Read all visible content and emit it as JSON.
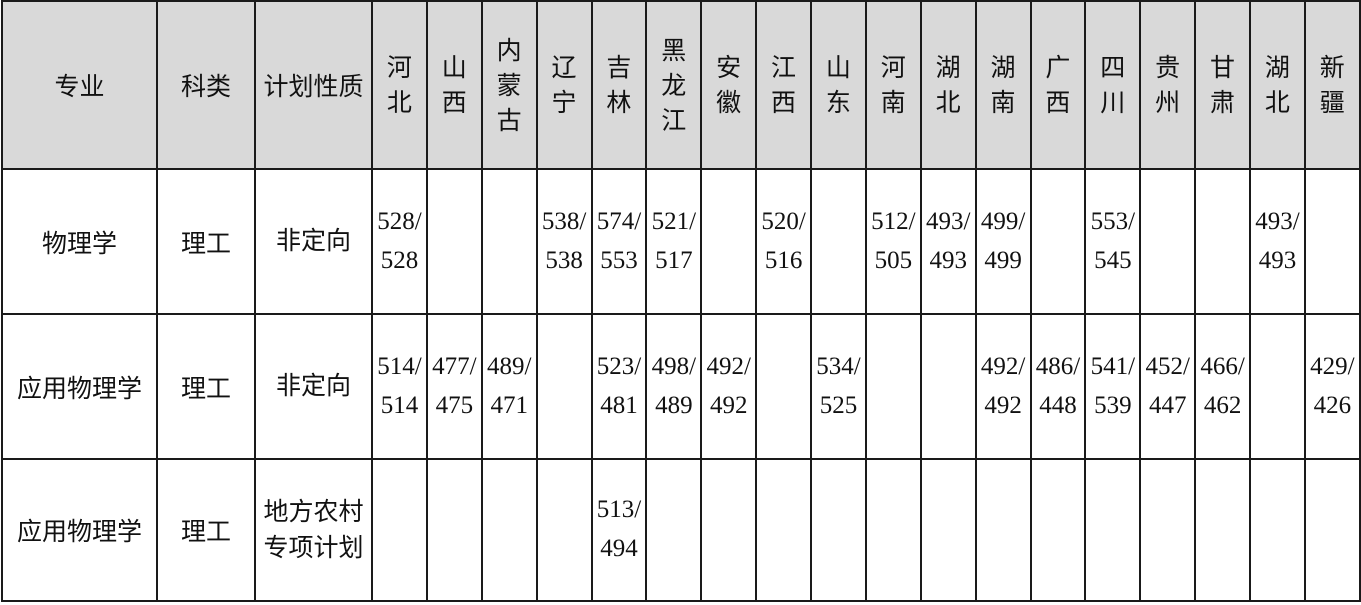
{
  "table": {
    "fixed_headers": [
      "专业",
      "科类",
      "计划性质"
    ],
    "provinces": [
      "河北",
      "山西",
      "内蒙古",
      "辽宁",
      "吉林",
      "黑龙江",
      "安徽",
      "江西",
      "山东",
      "河南",
      "湖北",
      "湖南",
      "广西",
      "四川",
      "贵州",
      "甘肃",
      "湖北",
      "新疆"
    ],
    "header_bg": "#d9d9d9",
    "rows": [
      {
        "major": "物理学",
        "category": "理工",
        "plan": "非定向",
        "scores": [
          "528/528",
          "",
          "",
          "538/538",
          "574/553",
          "521/517",
          "",
          "520/516",
          "",
          "512/505",
          "493/493",
          "499/499",
          "",
          "553/545",
          "",
          "",
          "493/493",
          ""
        ]
      },
      {
        "major": "应用物理学",
        "category": "理工",
        "plan": "非定向",
        "scores": [
          "514/514",
          "477/475",
          "489/471",
          "",
          "523/481",
          "498/489",
          "492/492",
          "",
          "534/525",
          "",
          "",
          "492/492",
          "486/448",
          "541/539",
          "452/447",
          "466/462",
          "",
          "429/426"
        ]
      },
      {
        "major": "应用物理学",
        "category": "理工",
        "plan": "地方农村专项计划",
        "scores": [
          "",
          "",
          "",
          "",
          "513/494",
          "",
          "",
          "",
          "",
          "",
          "",
          "",
          "",
          "",
          "",
          "",
          "",
          ""
        ]
      }
    ]
  }
}
